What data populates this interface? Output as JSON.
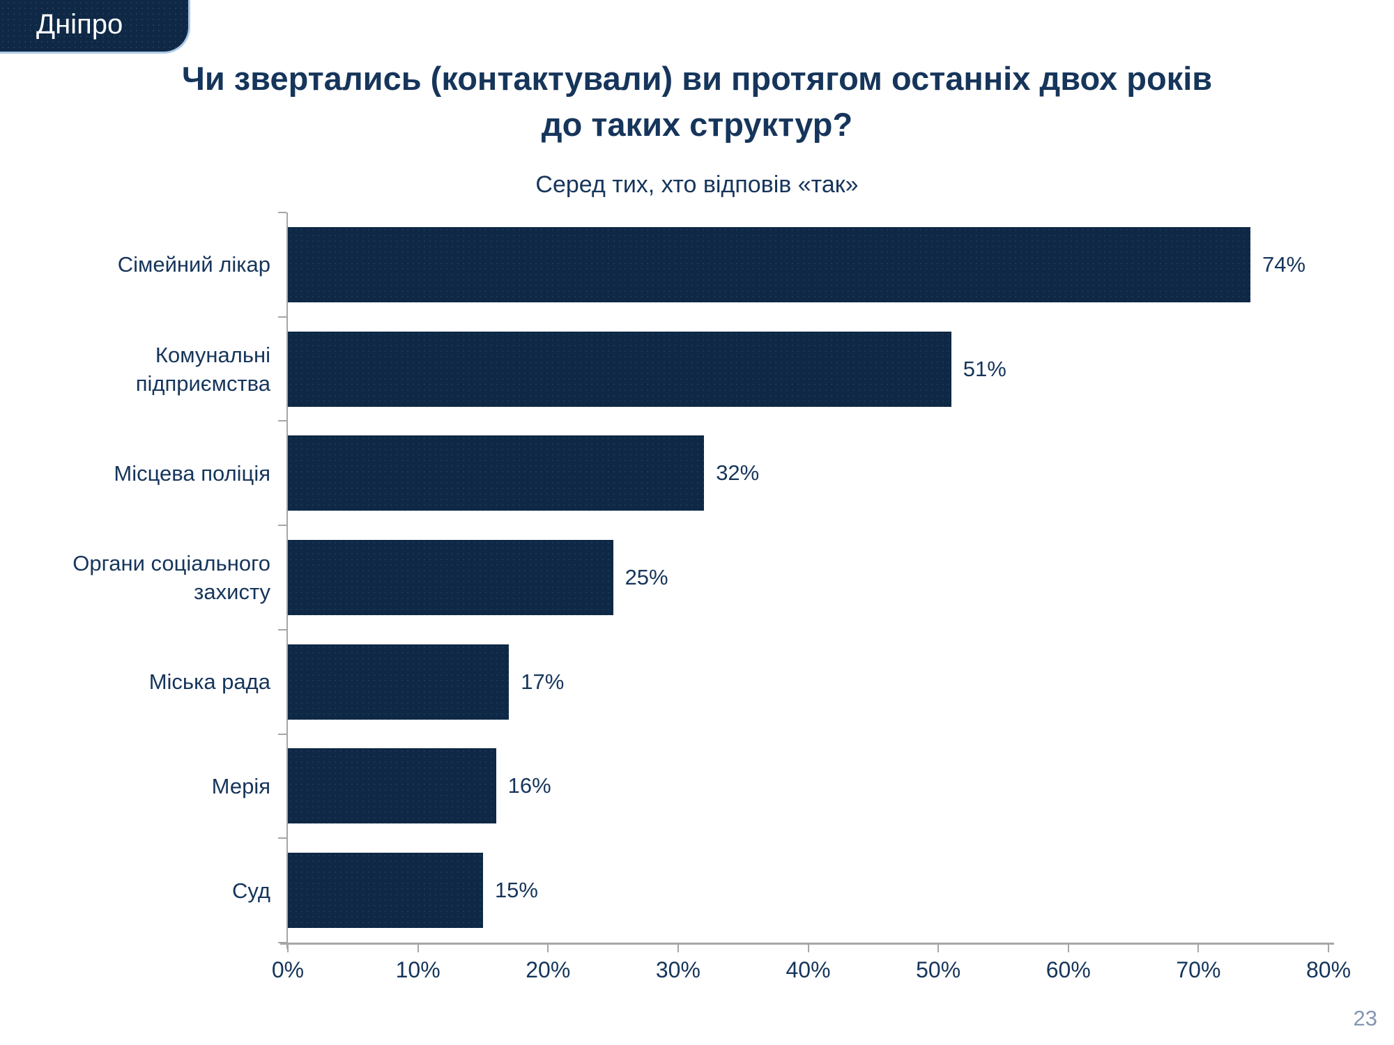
{
  "badge": {
    "label": "Дніпро"
  },
  "title": {
    "line1": "Чи звертались (контактували) ви протягом останніх двох років",
    "line2": "до таких структур?"
  },
  "subtitle": "Серед тих, хто відповів «так»",
  "page_number": "23",
  "colors": {
    "bar_fill": "#0E2845",
    "text_navy": "#16355B",
    "axis_gray": "#A6A6A6",
    "badge_fill": "#0E2845",
    "badge_accent": "#AEC9E9",
    "page_number_gray": "#8496B0",
    "background": "#FFFFFF"
  },
  "chart_data": {
    "type": "bar",
    "orientation": "horizontal",
    "title": "Чи звертались (контактували) ви протягом останніх двох років до таких структур?",
    "subtitle": "Серед тих, хто відповів «так»",
    "categories": [
      "Сімейний лікар",
      "Комунальні\nпідприємства",
      "Місцева поліція",
      "Органи соціального\nзахисту",
      "Міська рада",
      "Мерія",
      "Суд"
    ],
    "values": [
      74,
      51,
      32,
      25,
      17,
      16,
      15
    ],
    "value_labels": [
      "74%",
      "51%",
      "32%",
      "25%",
      "17%",
      "16%",
      "15%"
    ],
    "xticks": [
      "0%",
      "10%",
      "20%",
      "30%",
      "40%",
      "50%",
      "60%",
      "70%",
      "80%"
    ],
    "xlim": [
      0,
      80
    ],
    "grid": false,
    "legend": false,
    "bar_color": "#0E2845",
    "axis_color": "#A6A6A6"
  }
}
